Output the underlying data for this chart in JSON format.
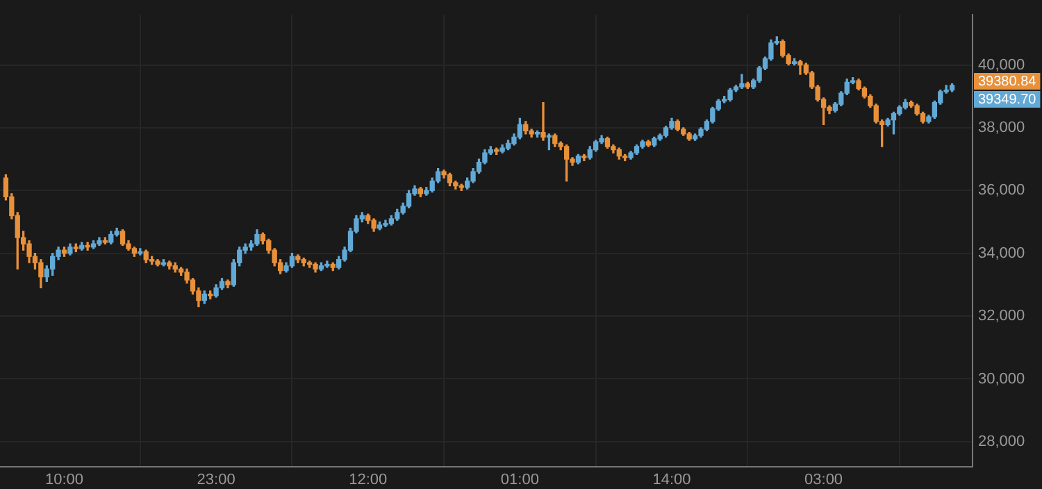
{
  "chart_data": {
    "type": "candlestick",
    "categories": [
      null,
      null,
      null,
      null,
      null,
      null,
      null,
      null,
      null,
      null,
      "10:00",
      null,
      null,
      null,
      null,
      null,
      null,
      null,
      null,
      null,
      null,
      null,
      null,
      null,
      null,
      null,
      null,
      null,
      null,
      null,
      null,
      null,
      null,
      null,
      null,
      null,
      "23:00",
      null,
      null,
      null,
      null,
      null,
      null,
      null,
      null,
      null,
      null,
      null,
      null,
      null,
      null,
      null,
      null,
      null,
      null,
      null,
      null,
      null,
      null,
      null,
      null,
      null,
      "12:00",
      null,
      null,
      null,
      null,
      null,
      null,
      null,
      null,
      null,
      null,
      null,
      null,
      null,
      null,
      null,
      null,
      null,
      null,
      null,
      null,
      null,
      null,
      null,
      null,
      null,
      "01:00",
      null,
      null,
      null,
      null,
      null,
      null,
      null,
      null,
      null,
      null,
      null,
      null,
      null,
      null,
      null,
      null,
      null,
      null,
      null,
      null,
      null,
      null,
      null,
      null,
      null,
      "14:00",
      null,
      null,
      null,
      null,
      null,
      null,
      null,
      null,
      null,
      null,
      null,
      null,
      null,
      null,
      null,
      null,
      null,
      null,
      null,
      null,
      null,
      null,
      null,
      null,
      null,
      "03:00",
      null,
      null,
      null,
      null,
      null,
      null,
      null,
      null,
      null,
      null,
      null,
      null,
      null,
      null,
      null,
      null,
      null,
      null,
      null,
      null,
      null,
      null
    ],
    "ohlc": [
      [
        36400,
        36500,
        35700,
        35800
      ],
      [
        35800,
        35900,
        35100,
        35200
      ],
      [
        35200,
        35300,
        33500,
        34500
      ],
      [
        34500,
        34700,
        34100,
        34300
      ],
      [
        34300,
        34400,
        33700,
        33900
      ],
      [
        33900,
        34000,
        33500,
        33700
      ],
      [
        33700,
        33800,
        32900,
        33250
      ],
      [
        33250,
        33600,
        33100,
        33500
      ],
      [
        33500,
        34000,
        33300,
        33900
      ],
      [
        33900,
        34200,
        33800,
        34100
      ],
      [
        34100,
        34200,
        33900,
        34000
      ],
      [
        34000,
        34300,
        33950,
        34200
      ],
      [
        34200,
        34300,
        34050,
        34150
      ],
      [
        34150,
        34350,
        34100,
        34250
      ],
      [
        34250,
        34350,
        34100,
        34200
      ],
      [
        34200,
        34400,
        34150,
        34300
      ],
      [
        34300,
        34500,
        34250,
        34400
      ],
      [
        34400,
        34500,
        34300,
        34350
      ],
      [
        34350,
        34700,
        34300,
        34600
      ],
      [
        34600,
        34800,
        34550,
        34700
      ],
      [
        34700,
        34750,
        34250,
        34300
      ],
      [
        34300,
        34400,
        34100,
        34150
      ],
      [
        34150,
        34200,
        33900,
        34000
      ],
      [
        34000,
        34150,
        33950,
        34050
      ],
      [
        34050,
        34100,
        33700,
        33800
      ],
      [
        33800,
        33900,
        33650,
        33750
      ],
      [
        33750,
        33800,
        33600,
        33650
      ],
      [
        33650,
        33800,
        33600,
        33700
      ],
      [
        33700,
        33750,
        33500,
        33600
      ],
      [
        33600,
        33700,
        33400,
        33500
      ],
      [
        33500,
        33550,
        33300,
        33400
      ],
      [
        33400,
        33500,
        33050,
        33150
      ],
      [
        33150,
        33200,
        32700,
        32800
      ],
      [
        32800,
        32900,
        32300,
        32500
      ],
      [
        32500,
        32800,
        32400,
        32700
      ],
      [
        32700,
        32800,
        32550,
        32650
      ],
      [
        32650,
        33000,
        32600,
        32900
      ],
      [
        32900,
        33200,
        32850,
        33100
      ],
      [
        33100,
        33150,
        32900,
        33000
      ],
      [
        33000,
        33800,
        32950,
        33700
      ],
      [
        33700,
        34200,
        33600,
        34100
      ],
      [
        34100,
        34300,
        34000,
        34200
      ],
      [
        34200,
        34400,
        34100,
        34300
      ],
      [
        34300,
        34750,
        34250,
        34600
      ],
      [
        34600,
        34650,
        34300,
        34400
      ],
      [
        34400,
        34450,
        34000,
        34100
      ],
      [
        34100,
        34150,
        33600,
        33700
      ],
      [
        33700,
        33800,
        33350,
        33450
      ],
      [
        33450,
        33700,
        33400,
        33600
      ],
      [
        33600,
        34000,
        33550,
        33900
      ],
      [
        33900,
        33950,
        33700,
        33800
      ],
      [
        33800,
        33850,
        33600,
        33700
      ],
      [
        33700,
        33750,
        33550,
        33650
      ],
      [
        33650,
        33700,
        33400,
        33500
      ],
      [
        33500,
        33700,
        33450,
        33600
      ],
      [
        33600,
        33750,
        33550,
        33650
      ],
      [
        33650,
        33700,
        33450,
        33550
      ],
      [
        33550,
        33900,
        33500,
        33800
      ],
      [
        33800,
        34200,
        33750,
        34100
      ],
      [
        34100,
        34800,
        34050,
        34700
      ],
      [
        34700,
        35200,
        34650,
        35100
      ],
      [
        35100,
        35300,
        35000,
        35200
      ],
      [
        35200,
        35250,
        34950,
        35050
      ],
      [
        35050,
        35100,
        34700,
        34800
      ],
      [
        34800,
        35000,
        34750,
        34900
      ],
      [
        34900,
        35050,
        34850,
        34950
      ],
      [
        34950,
        35200,
        34900,
        35100
      ],
      [
        35100,
        35400,
        35050,
        35300
      ],
      [
        35300,
        35600,
        35250,
        35500
      ],
      [
        35500,
        36000,
        35450,
        35900
      ],
      [
        35900,
        36150,
        35850,
        36050
      ],
      [
        36050,
        36100,
        35800,
        35900
      ],
      [
        35900,
        36100,
        35850,
        36000
      ],
      [
        36000,
        36400,
        35950,
        36300
      ],
      [
        36300,
        36700,
        36250,
        36600
      ],
      [
        36600,
        36650,
        36400,
        36500
      ],
      [
        36500,
        36550,
        36150,
        36250
      ],
      [
        36250,
        36300,
        36050,
        36150
      ],
      [
        36150,
        36200,
        36000,
        36100
      ],
      [
        36100,
        36400,
        36050,
        36300
      ],
      [
        36300,
        36700,
        36250,
        36600
      ],
      [
        36600,
        37000,
        36550,
        36900
      ],
      [
        36900,
        37300,
        36850,
        37200
      ],
      [
        37200,
        37400,
        37150,
        37300
      ],
      [
        37300,
        37350,
        37150,
        37250
      ],
      [
        37250,
        37450,
        37200,
        37350
      ],
      [
        37350,
        37600,
        37300,
        37500
      ],
      [
        37500,
        37800,
        37450,
        37700
      ],
      [
        37700,
        38300,
        37650,
        38100
      ],
      [
        38100,
        38200,
        37800,
        37900
      ],
      [
        37900,
        37950,
        37700,
        37800
      ],
      [
        37800,
        37900,
        37700,
        37850
      ],
      [
        37850,
        38800,
        37600,
        37700
      ],
      [
        37700,
        37800,
        37300,
        37750
      ],
      [
        37750,
        37800,
        37400,
        37500
      ],
      [
        37500,
        37550,
        37300,
        37400
      ],
      [
        37400,
        37450,
        36300,
        37000
      ],
      [
        37000,
        37050,
        36800,
        36900
      ],
      [
        36900,
        37150,
        36850,
        37100
      ],
      [
        37100,
        37150,
        36950,
        37050
      ],
      [
        37050,
        37400,
        37000,
        37300
      ],
      [
        37300,
        37600,
        37250,
        37550
      ],
      [
        37550,
        37750,
        37500,
        37650
      ],
      [
        37650,
        37700,
        37350,
        37400
      ],
      [
        37400,
        37450,
        37200,
        37300
      ],
      [
        37300,
        37350,
        37000,
        37100
      ],
      [
        37100,
        37150,
        36950,
        37050
      ],
      [
        37050,
        37250,
        37000,
        37200
      ],
      [
        37200,
        37450,
        37150,
        37400
      ],
      [
        37400,
        37600,
        37350,
        37550
      ],
      [
        37550,
        37600,
        37400,
        37450
      ],
      [
        37450,
        37700,
        37400,
        37650
      ],
      [
        37650,
        37800,
        37600,
        37750
      ],
      [
        37750,
        38050,
        37700,
        38000
      ],
      [
        38000,
        38300,
        37950,
        38200
      ],
      [
        38200,
        38250,
        37900,
        37950
      ],
      [
        37950,
        38000,
        37750,
        37800
      ],
      [
        37800,
        37850,
        37600,
        37650
      ],
      [
        37650,
        37800,
        37600,
        37750
      ],
      [
        37750,
        38000,
        37700,
        37950
      ],
      [
        37950,
        38250,
        37900,
        38200
      ],
      [
        38200,
        38650,
        38150,
        38600
      ],
      [
        38600,
        38900,
        38550,
        38850
      ],
      [
        38850,
        39000,
        38800,
        38900
      ],
      [
        38900,
        39250,
        38850,
        39200
      ],
      [
        39200,
        39350,
        39150,
        39300
      ],
      [
        39300,
        39700,
        39250,
        39400
      ],
      [
        39400,
        39450,
        39250,
        39300
      ],
      [
        39300,
        39550,
        39250,
        39500
      ],
      [
        39500,
        39950,
        39450,
        39900
      ],
      [
        39900,
        40250,
        39850,
        40200
      ],
      [
        40200,
        40800,
        40150,
        40700
      ],
      [
        40700,
        40900,
        40650,
        40750
      ],
      [
        40750,
        40800,
        40250,
        40300
      ],
      [
        40300,
        40350,
        40000,
        40050
      ],
      [
        40050,
        40200,
        40000,
        40100
      ],
      [
        40100,
        40150,
        39700,
        40000
      ],
      [
        40000,
        40050,
        39700,
        39750
      ],
      [
        39750,
        39800,
        39250,
        39300
      ],
      [
        39300,
        39350,
        38850,
        38900
      ],
      [
        38900,
        38950,
        38100,
        38650
      ],
      [
        38650,
        38700,
        38450,
        38550
      ],
      [
        38550,
        38800,
        38500,
        38750
      ],
      [
        38750,
        39150,
        38700,
        39100
      ],
      [
        39100,
        39550,
        39050,
        39450
      ],
      [
        39450,
        39600,
        39400,
        39500
      ],
      [
        39500,
        39550,
        39200,
        39250
      ],
      [
        39250,
        39300,
        38950,
        39000
      ],
      [
        39000,
        39050,
        38650,
        38700
      ],
      [
        38700,
        38750,
        38150,
        38200
      ],
      [
        38200,
        38250,
        37400,
        38100
      ],
      [
        38100,
        38300,
        38050,
        38250
      ],
      [
        38250,
        38500,
        37800,
        38450
      ],
      [
        38450,
        38700,
        38400,
        38650
      ],
      [
        38650,
        38900,
        38600,
        38800
      ],
      [
        38800,
        38850,
        38650,
        38700
      ],
      [
        38700,
        38750,
        38400,
        38450
      ],
      [
        38450,
        38500,
        38150,
        38200
      ],
      [
        38200,
        38400,
        38150,
        38350
      ],
      [
        38350,
        38850,
        38300,
        38800
      ],
      [
        38800,
        39200,
        38750,
        39150
      ],
      [
        39150,
        39350,
        39100,
        39200
      ],
      [
        39200,
        39400,
        39150,
        39349.7
      ]
    ],
    "colors": [
      "#e8903a",
      "#e8903a",
      "#e8903a",
      "#e8903a",
      "#e8903a",
      "#e8903a",
      "#e8903a",
      "#62a9d6",
      "#62a9d6",
      "#62a9d6",
      "#e8903a",
      "#62a9d6",
      "#e8903a",
      "#62a9d6",
      "#e8903a",
      "#62a9d6",
      "#62a9d6",
      "#e8903a",
      "#62a9d6",
      "#62a9d6",
      "#e8903a",
      "#e8903a",
      "#e8903a",
      "#62a9d6",
      "#e8903a",
      "#e8903a",
      "#e8903a",
      "#62a9d6",
      "#e8903a",
      "#e8903a",
      "#e8903a",
      "#e8903a",
      "#e8903a",
      "#e8903a",
      "#62a9d6",
      "#e8903a",
      "#62a9d6",
      "#62a9d6",
      "#e8903a",
      "#62a9d6",
      "#62a9d6",
      "#62a9d6",
      "#62a9d6",
      "#62a9d6",
      "#e8903a",
      "#e8903a",
      "#e8903a",
      "#e8903a",
      "#62a9d6",
      "#62a9d6",
      "#e8903a",
      "#e8903a",
      "#e8903a",
      "#e8903a",
      "#62a9d6",
      "#62a9d6",
      "#e8903a",
      "#62a9d6",
      "#62a9d6",
      "#62a9d6",
      "#62a9d6",
      "#62a9d6",
      "#e8903a",
      "#e8903a",
      "#62a9d6",
      "#62a9d6",
      "#62a9d6",
      "#62a9d6",
      "#62a9d6",
      "#62a9d6",
      "#62a9d6",
      "#e8903a",
      "#62a9d6",
      "#62a9d6",
      "#62a9d6",
      "#e8903a",
      "#e8903a",
      "#e8903a",
      "#e8903a",
      "#62a9d6",
      "#62a9d6",
      "#62a9d6",
      "#62a9d6",
      "#62a9d6",
      "#e8903a",
      "#62a9d6",
      "#62a9d6",
      "#62a9d6",
      "#62a9d6",
      "#e8903a",
      "#e8903a",
      "#62a9d6",
      "#e8903a",
      "#62a9d6",
      "#e8903a",
      "#e8903a",
      "#e8903a",
      "#e8903a",
      "#62a9d6",
      "#e8903a",
      "#62a9d6",
      "#62a9d6",
      "#62a9d6",
      "#e8903a",
      "#e8903a",
      "#e8903a",
      "#e8903a",
      "#62a9d6",
      "#62a9d6",
      "#62a9d6",
      "#e8903a",
      "#62a9d6",
      "#62a9d6",
      "#62a9d6",
      "#62a9d6",
      "#e8903a",
      "#e8903a",
      "#e8903a",
      "#62a9d6",
      "#62a9d6",
      "#62a9d6",
      "#62a9d6",
      "#62a9d6",
      "#62a9d6",
      "#62a9d6",
      "#62a9d6",
      "#62a9d6",
      "#e8903a",
      "#62a9d6",
      "#62a9d6",
      "#62a9d6",
      "#62a9d6",
      "#62a9d6",
      "#e8903a",
      "#e8903a",
      "#62a9d6",
      "#e8903a",
      "#e8903a",
      "#e8903a",
      "#e8903a",
      "#e8903a",
      "#e8903a",
      "#62a9d6",
      "#62a9d6",
      "#62a9d6",
      "#62a9d6",
      "#e8903a",
      "#e8903a",
      "#e8903a",
      "#e8903a",
      "#e8903a",
      "#62a9d6",
      "#62a9d6",
      "#62a9d6",
      "#62a9d6",
      "#e8903a",
      "#e8903a",
      "#e8903a",
      "#62a9d6",
      "#62a9d6",
      "#62a9d6",
      "#62a9d6",
      "#62a9d6"
    ],
    "ylim": [
      27200,
      41600
    ],
    "yticks": [
      {
        "value": 28000,
        "label": "28,000"
      },
      {
        "value": 30000,
        "label": "30,000"
      },
      {
        "value": 32000,
        "label": "32,000"
      },
      {
        "value": 34000,
        "label": "34,000"
      },
      {
        "value": 36000,
        "label": "36,000"
      },
      {
        "value": 38000,
        "label": "38,000"
      },
      {
        "value": 40000,
        "label": "40,000"
      }
    ],
    "grid": true,
    "annotations": [
      "39380.84",
      "39349.70"
    ]
  }
}
